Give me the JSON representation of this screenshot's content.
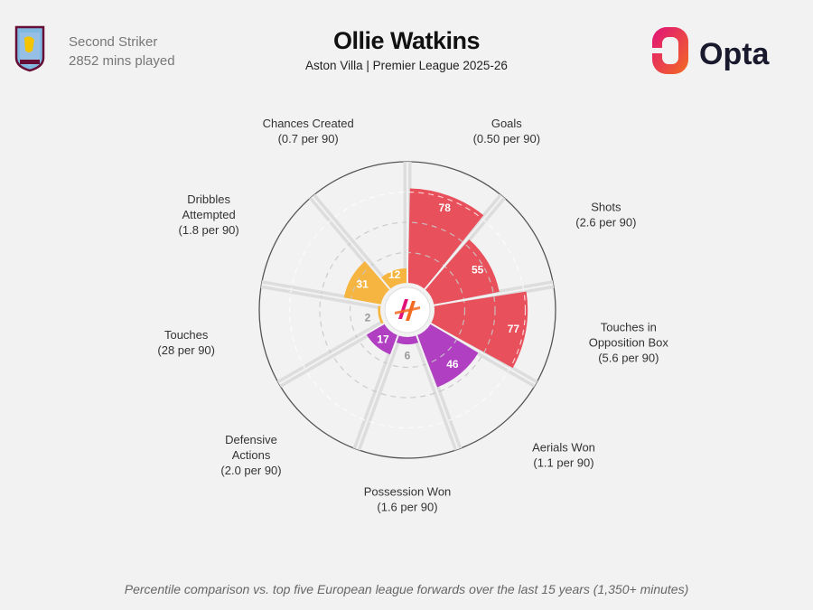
{
  "header": {
    "player_name": "Ollie Watkins",
    "team_season": "Aston Villa | Premier League 2025-26",
    "position": "Second Striker",
    "minutes": "2852 mins played",
    "brand": "Opta"
  },
  "footnote": "Percentile comparison vs. top five European league forwards over the last 15 years (1,350+ minutes)",
  "colors": {
    "attacking": "#e8505b",
    "possession": "#f5b540",
    "defending": "#b03fc2",
    "background": "#f2f2f2"
  },
  "chart_data": {
    "type": "polar-bar",
    "rlim": [
      0,
      100
    ],
    "categories": [
      {
        "lines": [
          "Goals",
          "(0.50 per 90)"
        ],
        "percentile": 78,
        "group": "attacking"
      },
      {
        "lines": [
          "Shots",
          "(2.6 per 90)"
        ],
        "percentile": 55,
        "group": "attacking"
      },
      {
        "lines": [
          "Touches in",
          "Opposition Box",
          "(5.6 per 90)"
        ],
        "percentile": 77,
        "group": "attacking"
      },
      {
        "lines": [
          "Aerials Won",
          "(1.1 per 90)"
        ],
        "percentile": 46,
        "group": "defending"
      },
      {
        "lines": [
          "Possession Won",
          "(1.6 per 90)"
        ],
        "percentile": 6,
        "group": "defending"
      },
      {
        "lines": [
          "Defensive",
          "Actions",
          "(2.0 per 90)"
        ],
        "percentile": 17,
        "group": "defending"
      },
      {
        "lines": [
          "Touches",
          "(28 per 90)"
        ],
        "percentile": 2,
        "group": "possession"
      },
      {
        "lines": [
          "Dribbles",
          "Attempted",
          "(1.8 per 90)"
        ],
        "percentile": 31,
        "group": "possession"
      },
      {
        "lines": [
          "Chances Created",
          "(0.7 per 90)"
        ],
        "percentile": 12,
        "group": "possession"
      }
    ]
  }
}
